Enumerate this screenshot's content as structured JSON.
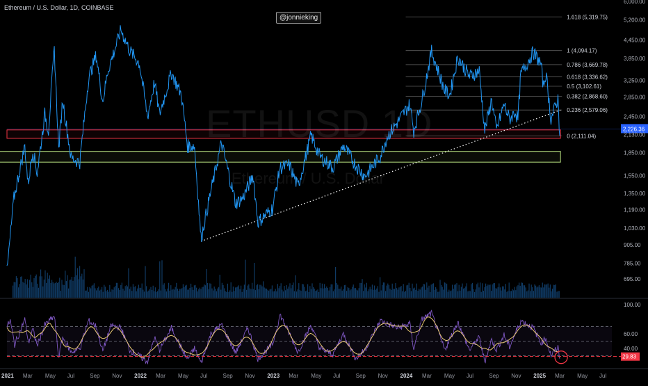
{
  "header": {
    "symbol_line": "Ethereum / U.S. Dollar, 1D, COINBASE",
    "author_tag": "@jonnieking",
    "watermark_symbol": "ETHUSD 1D",
    "watermark_name": "Ethereum / U.S. Dollar"
  },
  "colors": {
    "background": "#000000",
    "price_line": "#2196f3",
    "volume": "#1e6cb8",
    "rsi_line": "#7e57c2",
    "rsi_ma": "#e8c873",
    "fib_line": "#5d5d5d",
    "red_box": "#f23645",
    "green_box": "#b7e07f",
    "trendline": "#ffffff",
    "current_price_badge": "#2962ff",
    "rsi_badge": "#f23645"
  },
  "chart_data": [
    {
      "type": "line",
      "title": "Ethereum / U.S. Dollar, 1D, COINBASE",
      "y_scale": "log",
      "ylim": [
        600,
        6000
      ],
      "x_range": [
        "2021-01-01",
        "2025-07-20"
      ],
      "y_ticks": [
        "6,000.00",
        "5,200.00",
        "4,450.00",
        "3,850.00",
        "3,250.00",
        "2,850.00",
        "2,450.00",
        "2,130.00",
        "1,850.00",
        "1,550.00",
        "1,350.00",
        "1,190.00",
        "1,030.00",
        "905.00",
        "785.00",
        "695.00"
      ],
      "series": [
        {
          "values": [
            [
              "2021-01-01",
              730
            ],
            [
              "2021-01-20",
              1300
            ],
            [
              "2021-02-19",
              1950
            ],
            [
              "2021-02-28",
              1450
            ],
            [
              "2021-03-13",
              1900
            ],
            [
              "2021-03-25",
              1580
            ],
            [
              "2021-04-15",
              2500
            ],
            [
              "2021-04-25",
              2200
            ],
            [
              "2021-05-11",
              4150
            ],
            [
              "2021-05-23",
              1900
            ],
            [
              "2021-06-03",
              2800
            ],
            [
              "2021-06-26",
              1780
            ],
            [
              "2021-07-20",
              1720
            ],
            [
              "2021-08-13",
              3300
            ],
            [
              "2021-09-03",
              3950
            ],
            [
              "2021-09-21",
              2750
            ],
            [
              "2021-10-05",
              3500
            ],
            [
              "2021-10-30",
              4350
            ],
            [
              "2021-11-10",
              4810
            ],
            [
              "2021-12-04",
              4100
            ],
            [
              "2021-12-31",
              3700
            ],
            [
              "2022-01-22",
              2450
            ],
            [
              "2022-02-10",
              3200
            ],
            [
              "2022-02-24",
              2500
            ],
            [
              "2022-03-29",
              3450
            ],
            [
              "2022-04-25",
              2900
            ],
            [
              "2022-05-12",
              1950
            ],
            [
              "2022-05-31",
              1950
            ],
            [
              "2022-06-18",
              950
            ],
            [
              "2022-07-08",
              1250
            ],
            [
              "2022-08-13",
              2000
            ],
            [
              "2022-09-21",
              1250
            ],
            [
              "2022-10-10",
              1300
            ],
            [
              "2022-11-08",
              1550
            ],
            [
              "2022-11-21",
              1080
            ],
            [
              "2022-12-31",
              1200
            ],
            [
              "2023-01-21",
              1650
            ],
            [
              "2023-02-16",
              1680
            ],
            [
              "2023-03-11",
              1420
            ],
            [
              "2023-04-16",
              2120
            ],
            [
              "2023-05-10",
              1800
            ],
            [
              "2023-06-15",
              1650
            ],
            [
              "2023-07-14",
              1950
            ],
            [
              "2023-08-17",
              1680
            ],
            [
              "2023-09-11",
              1540
            ],
            [
              "2023-10-23",
              1800
            ],
            [
              "2023-11-11",
              2100
            ],
            [
              "2023-12-10",
              2350
            ],
            [
              "2024-01-12",
              2700
            ],
            [
              "2024-01-23",
              2200
            ],
            [
              "2024-02-15",
              2800
            ],
            [
              "2024-03-12",
              4080
            ],
            [
              "2024-04-17",
              3000
            ],
            [
              "2024-05-01",
              2900
            ],
            [
              "2024-05-23",
              3900
            ],
            [
              "2024-06-24",
              3350
            ],
            [
              "2024-07-21",
              3500
            ],
            [
              "2024-08-05",
              2200
            ],
            [
              "2024-08-24",
              2800
            ],
            [
              "2024-09-06",
              2200
            ],
            [
              "2024-09-27",
              2700
            ],
            [
              "2024-10-12",
              2400
            ],
            [
              "2024-10-28",
              2550
            ],
            [
              "2024-11-04",
              2400
            ],
            [
              "2024-11-12",
              3400
            ],
            [
              "2024-12-16",
              4050
            ],
            [
              "2025-01-06",
              3700
            ],
            [
              "2025-01-13",
              3100
            ],
            [
              "2025-01-20",
              3450
            ],
            [
              "2025-02-03",
              2400
            ],
            [
              "2025-02-22",
              2820
            ],
            [
              "2025-02-27",
              2111
            ]
          ]
        }
      ],
      "fib_levels": [
        {
          "label": "1.618 (5,319.75)",
          "value": 5319.75
        },
        {
          "label": "1 (4,094.17)",
          "value": 4094.17
        },
        {
          "label": "0.786 (3,669.78)",
          "value": 3669.78
        },
        {
          "label": "0.618 (3,336.62)",
          "value": 3336.62
        },
        {
          "label": "0.5 (3,102.61)",
          "value": 3102.61
        },
        {
          "label": "0.382 (2,868.60)",
          "value": 2868.6
        },
        {
          "label": "0.236 (2,579.06)",
          "value": 2579.06
        },
        {
          "label": "0 (2,111.04)",
          "value": 2111.04
        }
      ],
      "zones": [
        {
          "color": "red",
          "from": "2021-01-01",
          "to": "2025-03-01",
          "low": 2070,
          "high": 2210
        },
        {
          "color": "green",
          "from": "2020-12-10",
          "to": "2025-03-01",
          "low": 1720,
          "high": 1870
        }
      ],
      "trendline": [
        [
          "2022-06-18",
          930
        ],
        [
          "2025-03-01",
          2580
        ]
      ],
      "current_price_label": "2,226.36",
      "x_tick_labels": [
        "2021",
        "Mar",
        "May",
        "Jul",
        "Sep",
        "Nov",
        "2022",
        "Mar",
        "May",
        "Jul",
        "Sep",
        "Nov",
        "2023",
        "Mar",
        "May",
        "Jul",
        "Sep",
        "Nov",
        "2024",
        "Mar",
        "May",
        "Jul",
        "Sep",
        "Nov",
        "2025",
        "Mar",
        "May",
        "Jul"
      ],
      "grid": false
    },
    {
      "type": "line",
      "title": "",
      "ylim": [
        20,
        100
      ],
      "y_ticks": [
        "100.00",
        "60.00",
        "40.00"
      ],
      "reference_lines": [
        70,
        50,
        30
      ],
      "series": [
        {
          "values": [
            [
              "2021-01-01",
              70
            ],
            [
              "2021-01-10",
              78
            ],
            [
              "2021-01-22",
              45
            ],
            [
              "2021-02-19",
              80
            ],
            [
              "2021-03-01",
              48
            ],
            [
              "2021-03-13",
              66
            ],
            [
              "2021-03-25",
              44
            ],
            [
              "2021-04-15",
              72
            ],
            [
              "2021-05-11",
              84
            ],
            [
              "2021-05-23",
              28
            ],
            [
              "2021-06-03",
              55
            ],
            [
              "2021-06-26",
              35
            ],
            [
              "2021-07-20",
              40
            ],
            [
              "2021-08-13",
              78
            ],
            [
              "2021-09-03",
              70
            ],
            [
              "2021-09-21",
              36
            ],
            [
              "2021-10-15",
              72
            ],
            [
              "2021-11-10",
              68
            ],
            [
              "2021-12-04",
              38
            ],
            [
              "2022-01-22",
              22
            ],
            [
              "2022-02-10",
              55
            ],
            [
              "2022-02-24",
              38
            ],
            [
              "2022-03-29",
              68
            ],
            [
              "2022-04-25",
              40
            ],
            [
              "2022-05-12",
              25
            ],
            [
              "2022-05-31",
              40
            ],
            [
              "2022-06-18",
              20
            ],
            [
              "2022-07-15",
              60
            ],
            [
              "2022-08-13",
              72
            ],
            [
              "2022-09-21",
              34
            ],
            [
              "2022-10-25",
              68
            ],
            [
              "2022-11-21",
              26
            ],
            [
              "2022-12-31",
              45
            ],
            [
              "2023-01-21",
              86
            ],
            [
              "2023-02-16",
              60
            ],
            [
              "2023-03-11",
              35
            ],
            [
              "2023-04-16",
              72
            ],
            [
              "2023-05-10",
              40
            ],
            [
              "2023-06-15",
              32
            ],
            [
              "2023-07-14",
              60
            ],
            [
              "2023-08-17",
              26
            ],
            [
              "2023-09-11",
              38
            ],
            [
              "2023-10-23",
              78
            ],
            [
              "2023-11-11",
              74
            ],
            [
              "2023-12-10",
              68
            ],
            [
              "2024-01-12",
              74
            ],
            [
              "2024-01-23",
              40
            ],
            [
              "2024-02-15",
              80
            ],
            [
              "2024-03-12",
              88
            ],
            [
              "2024-04-17",
              38
            ],
            [
              "2024-05-23",
              76
            ],
            [
              "2024-06-24",
              38
            ],
            [
              "2024-07-21",
              55
            ],
            [
              "2024-08-05",
              22
            ],
            [
              "2024-08-24",
              52
            ],
            [
              "2024-09-06",
              38
            ],
            [
              "2024-09-27",
              58
            ],
            [
              "2024-10-12",
              42
            ],
            [
              "2024-11-12",
              78
            ],
            [
              "2024-12-16",
              68
            ],
            [
              "2025-01-06",
              48
            ],
            [
              "2025-01-20",
              54
            ],
            [
              "2025-02-03",
              30
            ],
            [
              "2025-02-22",
              42
            ],
            [
              "2025-02-27",
              26
            ]
          ]
        }
      ],
      "current_value_label": "29.83"
    }
  ]
}
